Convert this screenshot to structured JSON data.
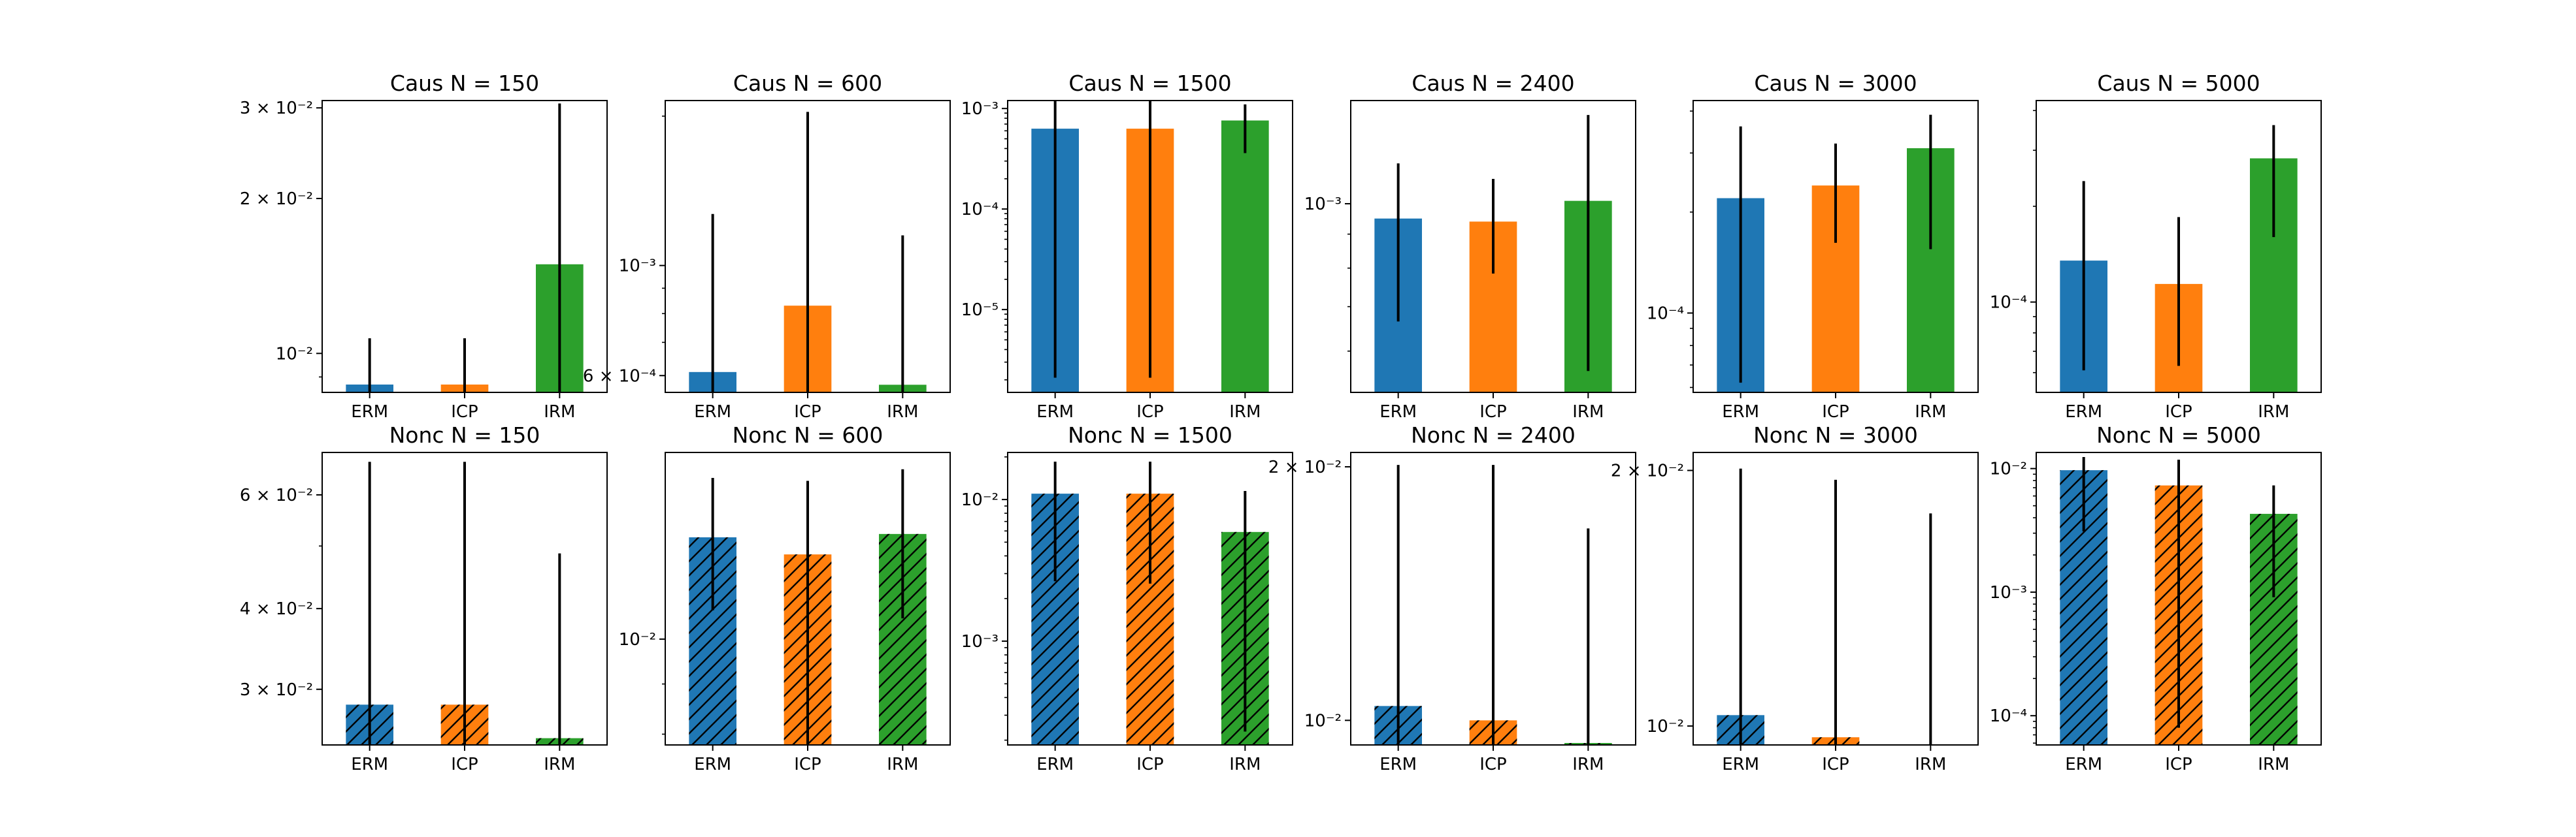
{
  "colors": {
    "ERM": "#1f77b4",
    "ICP": "#ff7f0e",
    "IRM": "#2ca02c",
    "errorbar": "#000000"
  },
  "chart_data": [
    {
      "type": "bar",
      "title": "Caus N = 150",
      "scale": "log",
      "hatch": false,
      "ylim": [
        0.0084,
        0.031
      ],
      "categories": [
        "ERM",
        "ICP",
        "IRM"
      ],
      "values": [
        0.0087,
        0.0087,
        0.0149
      ],
      "err_low": [
        0.0084,
        0.0084,
        0.0084
      ],
      "err_high": [
        0.0107,
        0.0107,
        0.0306
      ],
      "yticks": [
        {
          "value": 0.01,
          "label": "10⁻²"
        },
        {
          "value": 0.02,
          "label": "2 × 10⁻²"
        },
        {
          "value": 0.03,
          "label": "3 × 10⁻²"
        }
      ]
    },
    {
      "type": "bar",
      "title": "Caus N = 600",
      "scale": "log",
      "hatch": false,
      "ylim": [
        0.000555,
        0.00215
      ],
      "categories": [
        "ERM",
        "ICP",
        "IRM"
      ],
      "values": [
        0.00061,
        0.00083,
        0.000575
      ],
      "err_low": [
        0.000555,
        0.000555,
        0.000555
      ],
      "err_high": [
        0.00127,
        0.00204,
        0.00115
      ],
      "yticks": [
        {
          "value": 0.0006,
          "label": "6 × 10⁻⁴"
        },
        {
          "value": 0.001,
          "label": "10⁻³"
        }
      ]
    },
    {
      "type": "bar",
      "title": "Caus N = 1500",
      "scale": "log",
      "hatch": false,
      "ylim": [
        1.5e-06,
        0.0012
      ],
      "categories": [
        "ERM",
        "ICP",
        "IRM"
      ],
      "values": [
        0.00063,
        0.00063,
        0.00076
      ],
      "err_low": [
        2.1e-06,
        2.1e-06,
        0.00036
      ],
      "err_high": [
        0.0012,
        0.0012,
        0.0011
      ],
      "yticks": [
        {
          "value": 1e-05,
          "label": "10⁻⁵"
        },
        {
          "value": 0.0001,
          "label": "10⁻⁴"
        },
        {
          "value": 0.001,
          "label": "10⁻³"
        }
      ]
    },
    {
      "type": "bar",
      "title": "Caus N = 2400",
      "scale": "log",
      "hatch": false,
      "ylim": [
        0.00052,
        0.00143
      ],
      "categories": [
        "ERM",
        "ICP",
        "IRM"
      ],
      "values": [
        0.00095,
        0.00094,
        0.00101
      ],
      "err_low": [
        0.000665,
        0.000785,
        0.00056
      ],
      "err_high": [
        0.00115,
        0.00109,
        0.00136
      ],
      "yticks": [
        {
          "value": 0.001,
          "label": "10⁻³"
        }
      ]
    },
    {
      "type": "bar",
      "title": "Caus N = 3000",
      "scale": "log",
      "hatch": false,
      "ylim": [
        5.8e-05,
        0.00043
      ],
      "categories": [
        "ERM",
        "ICP",
        "IRM"
      ],
      "values": [
        0.00022,
        0.00024,
        0.00031
      ],
      "err_low": [
        6.2e-05,
        0.000162,
        0.000155
      ],
      "err_high": [
        0.00036,
        0.00032,
        0.00039
      ],
      "yticks": [
        {
          "value": 0.0001,
          "label": "10⁻⁴"
        }
      ]
    },
    {
      "type": "bar",
      "title": "Caus N = 5000",
      "scale": "log",
      "hatch": false,
      "ylim": [
        5.2e-05,
        0.00043
      ],
      "categories": [
        "ERM",
        "ICP",
        "IRM"
      ],
      "values": [
        0.000135,
        0.000114,
        0.000283
      ],
      "err_low": [
        6.1e-05,
        6.3e-05,
        0.00016
      ],
      "err_high": [
        0.00024,
        0.000185,
        0.00036
      ],
      "yticks": [
        {
          "value": 0.0001,
          "label": "10⁻⁴"
        }
      ]
    },
    {
      "type": "bar",
      "title": "Nonc N = 150",
      "scale": "log",
      "hatch": true,
      "ylim": [
        0.0246,
        0.0698
      ],
      "categories": [
        "ERM",
        "ICP",
        "IRM"
      ],
      "values": [
        0.0284,
        0.0284,
        0.0252
      ],
      "err_low": [
        0.0246,
        0.0246,
        0.0246
      ],
      "err_high": [
        0.0675,
        0.0675,
        0.0487
      ],
      "yticks": [
        {
          "value": 0.03,
          "label": "3 × 10⁻²"
        },
        {
          "value": 0.04,
          "label": "4 × 10⁻²"
        },
        {
          "value": 0.06,
          "label": "6 × 10⁻²"
        }
      ]
    },
    {
      "type": "bar",
      "title": "Nonc N = 600",
      "scale": "log",
      "hatch": true,
      "ylim": [
        0.0078,
        0.0155
      ],
      "categories": [
        "ERM",
        "ICP",
        "IRM"
      ],
      "values": [
        0.0127,
        0.0122,
        0.0128
      ],
      "err_low": [
        0.0107,
        0.0078,
        0.0105
      ],
      "err_high": [
        0.0146,
        0.0145,
        0.0149
      ],
      "yticks": [
        {
          "value": 0.01,
          "label": "10⁻²"
        }
      ]
    },
    {
      "type": "bar",
      "title": "Nonc N = 1500",
      "scale": "log",
      "hatch": true,
      "ylim": [
        0.000185,
        0.0215
      ],
      "categories": [
        "ERM",
        "ICP",
        "IRM"
      ],
      "values": [
        0.011,
        0.011,
        0.0059
      ],
      "err_low": [
        0.00265,
        0.00255,
        0.00023
      ],
      "err_high": [
        0.0185,
        0.0185,
        0.0115
      ],
      "yticks": [
        {
          "value": 0.001,
          "label": "10⁻³"
        },
        {
          "value": 0.01,
          "label": "10⁻²"
        }
      ]
    },
    {
      "type": "bar",
      "title": "Nonc N = 2400",
      "scale": "log",
      "hatch": true,
      "ylim": [
        0.00935,
        0.0208
      ],
      "categories": [
        "ERM",
        "ICP",
        "IRM"
      ],
      "values": [
        0.0104,
        0.01,
        0.0094
      ],
      "err_low": [
        0.00935,
        0.00935,
        0.00935
      ],
      "err_high": [
        0.0201,
        0.0201,
        0.0169
      ],
      "yticks": [
        {
          "value": 0.01,
          "label": "10⁻²"
        },
        {
          "value": 0.02,
          "label": "2 × 10⁻²"
        }
      ]
    },
    {
      "type": "bar",
      "title": "Nonc N = 3000",
      "scale": "log",
      "hatch": true,
      "ylim": [
        0.0095,
        0.021
      ],
      "categories": [
        "ERM",
        "ICP",
        "IRM"
      ],
      "values": [
        0.0103,
        0.0097,
        0.0095
      ],
      "err_low": [
        0.0095,
        0.0095,
        0.0095
      ],
      "err_high": [
        0.0201,
        0.0195,
        0.0178
      ],
      "yticks": [
        {
          "value": 0.01,
          "label": "10⁻²"
        },
        {
          "value": 0.02,
          "label": "2 × 10⁻²"
        }
      ]
    },
    {
      "type": "bar",
      "title": "Nonc N = 5000",
      "scale": "log",
      "hatch": true,
      "ylim": [
        5.8e-05,
        0.0135
      ],
      "categories": [
        "ERM",
        "ICP",
        "IRM"
      ],
      "values": [
        0.0097,
        0.0073,
        0.0043
      ],
      "err_low": [
        0.0031,
        8e-05,
        0.00091
      ],
      "err_high": [
        0.0124,
        0.0118,
        0.0073
      ],
      "yticks": [
        {
          "value": 0.0001,
          "label": "10⁻⁴"
        },
        {
          "value": 0.001,
          "label": "10⁻³"
        },
        {
          "value": 0.01,
          "label": "10⁻²"
        }
      ]
    }
  ]
}
